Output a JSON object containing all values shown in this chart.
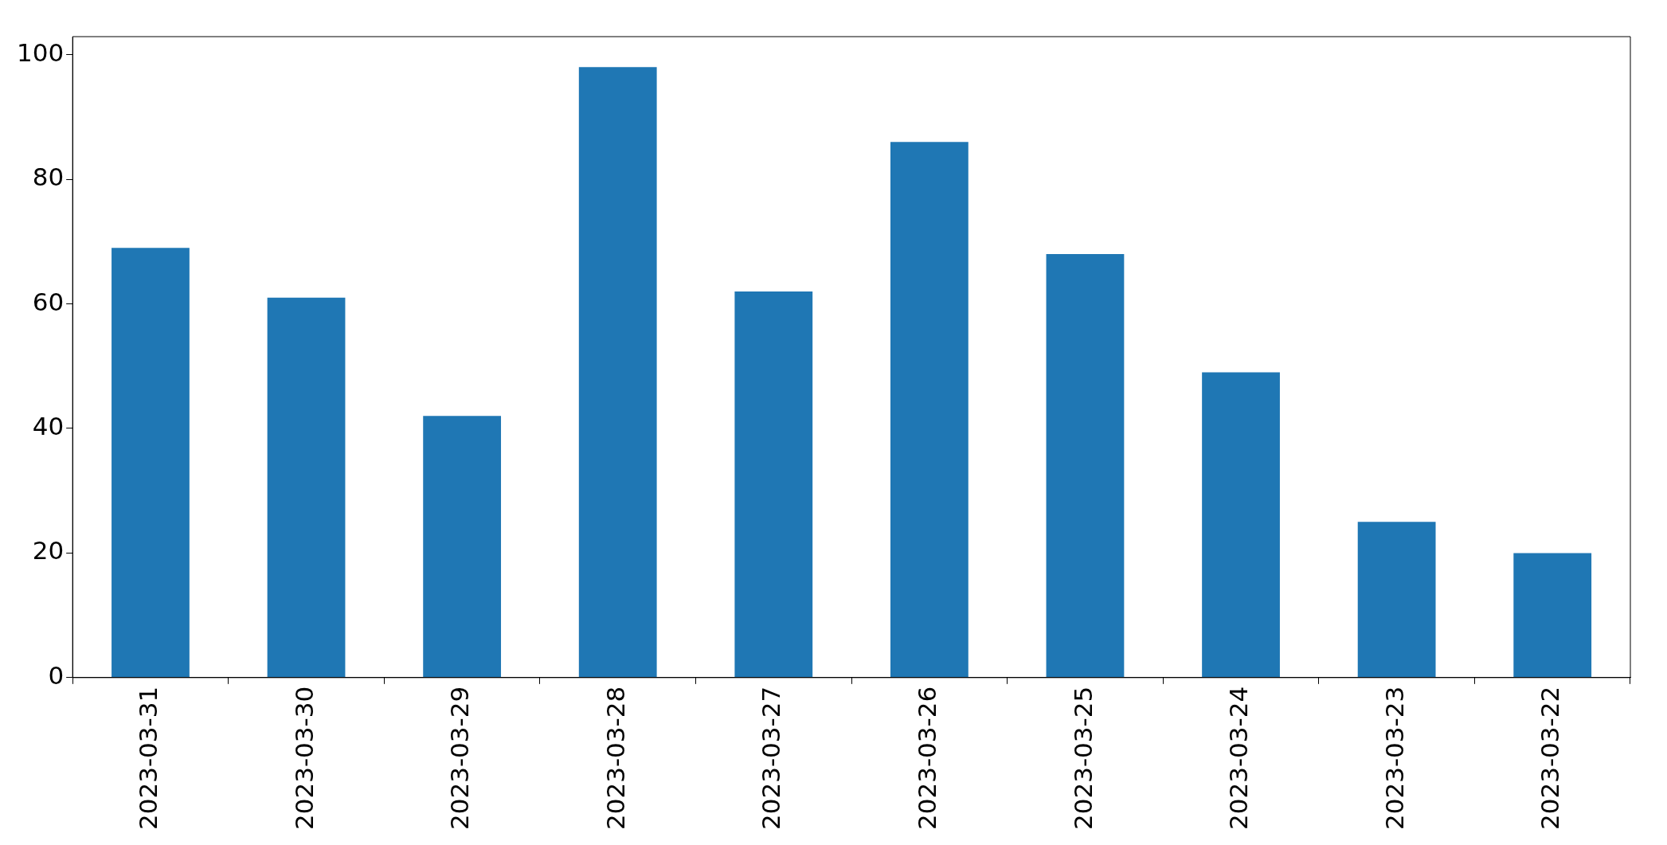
{
  "chart_data": {
    "type": "bar",
    "categories": [
      "2023-03-31",
      "2023-03-30",
      "2023-03-29",
      "2023-03-28",
      "2023-03-27",
      "2023-03-26",
      "2023-03-25",
      "2023-03-24",
      "2023-03-23",
      "2023-03-22"
    ],
    "values": [
      69,
      61,
      42,
      98,
      62,
      86,
      68,
      49,
      25,
      20
    ],
    "color": "#1f77b4",
    "ylim": [
      0,
      102.9
    ],
    "yticks": [
      0,
      20,
      40,
      60,
      80,
      100
    ],
    "grid": false,
    "legend": false
  }
}
